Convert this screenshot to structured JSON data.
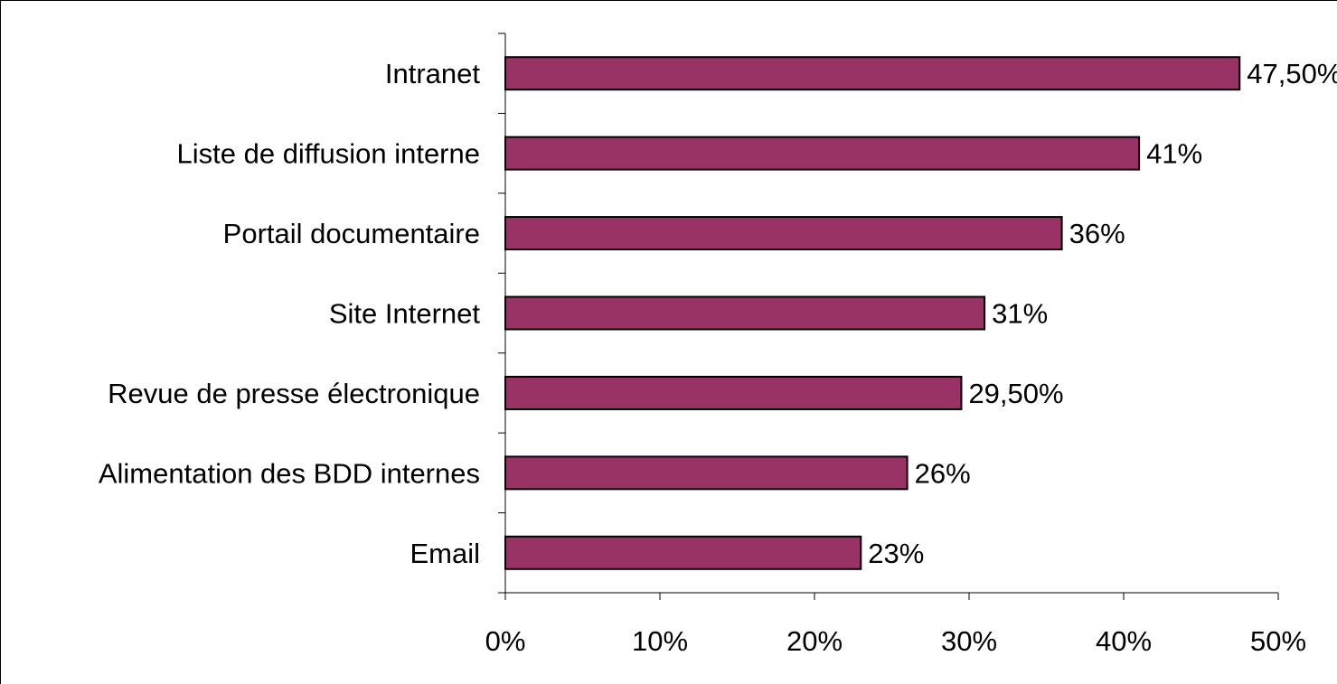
{
  "chart_data": {
    "type": "bar",
    "orientation": "horizontal",
    "title": "",
    "xlabel": "",
    "ylabel": "",
    "categories": [
      "Intranet",
      "Liste de diffusion interne",
      "Portail documentaire",
      "Site Internet",
      "Revue de presse électronique",
      "Alimentation des BDD internes",
      "Email"
    ],
    "values": [
      47.5,
      41,
      36,
      31,
      29.5,
      26,
      23
    ],
    "data_labels": [
      "47,50%",
      "41%",
      "36%",
      "31%",
      "29,50%",
      "26%",
      "23%"
    ],
    "xlim": [
      0,
      50
    ],
    "x_ticks": [
      0,
      10,
      20,
      30,
      40,
      50
    ],
    "x_tick_labels": [
      "0%",
      "10%",
      "20%",
      "30%",
      "40%",
      "50%"
    ],
    "grid": false,
    "legend": "none",
    "colors": {
      "bar_fill": "#993366",
      "bar_stroke": "#000000",
      "axis": "#000000",
      "text": "#000000"
    }
  }
}
